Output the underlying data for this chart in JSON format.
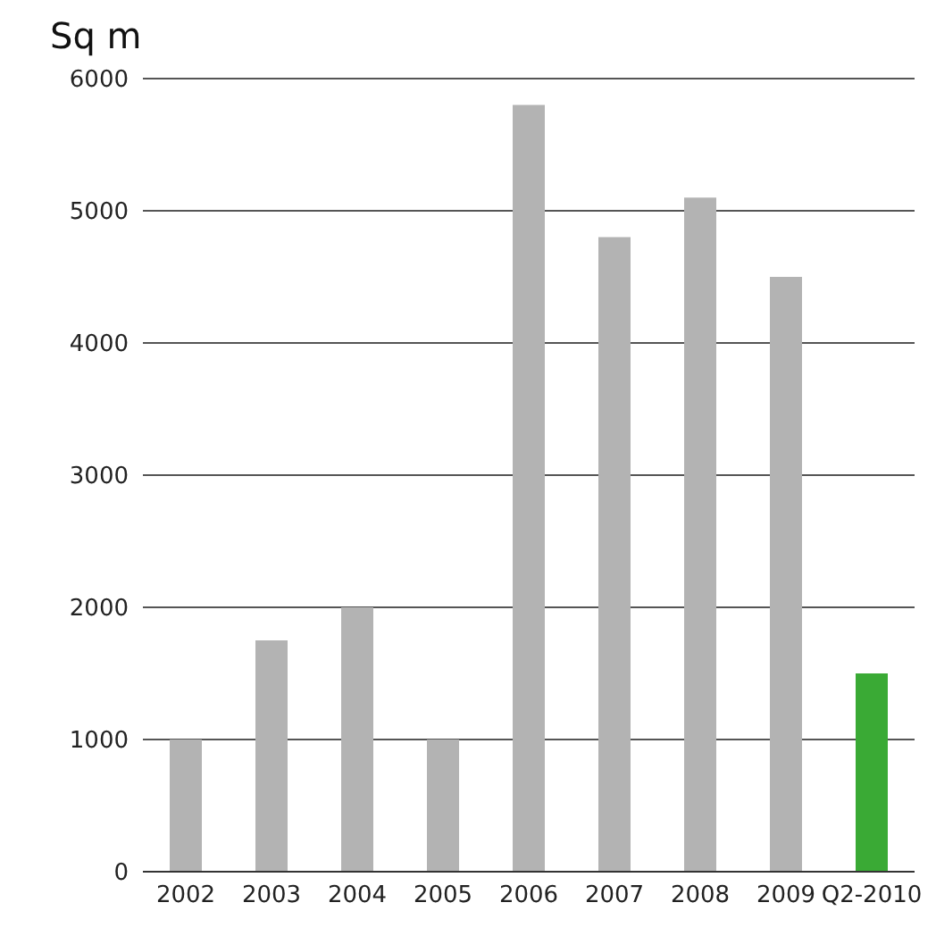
{
  "chart_data": {
    "type": "bar",
    "ylabel": "Sq m",
    "categories": [
      "2002",
      "2003",
      "2004",
      "2005",
      "2006",
      "2007",
      "2008",
      "2009",
      "Q2-2010"
    ],
    "values": [
      1000,
      1750,
      2000,
      1000,
      5800,
      4800,
      5100,
      4500,
      1500
    ],
    "colors": [
      "#b3b3b3",
      "#b3b3b3",
      "#b3b3b3",
      "#b3b3b3",
      "#b3b3b3",
      "#b3b3b3",
      "#b3b3b3",
      "#b3b3b3",
      "#3aaa35"
    ],
    "ylim": [
      0,
      6000
    ],
    "yticks": [
      0,
      1000,
      2000,
      3000,
      4000,
      5000,
      6000
    ],
    "grid": "y"
  }
}
